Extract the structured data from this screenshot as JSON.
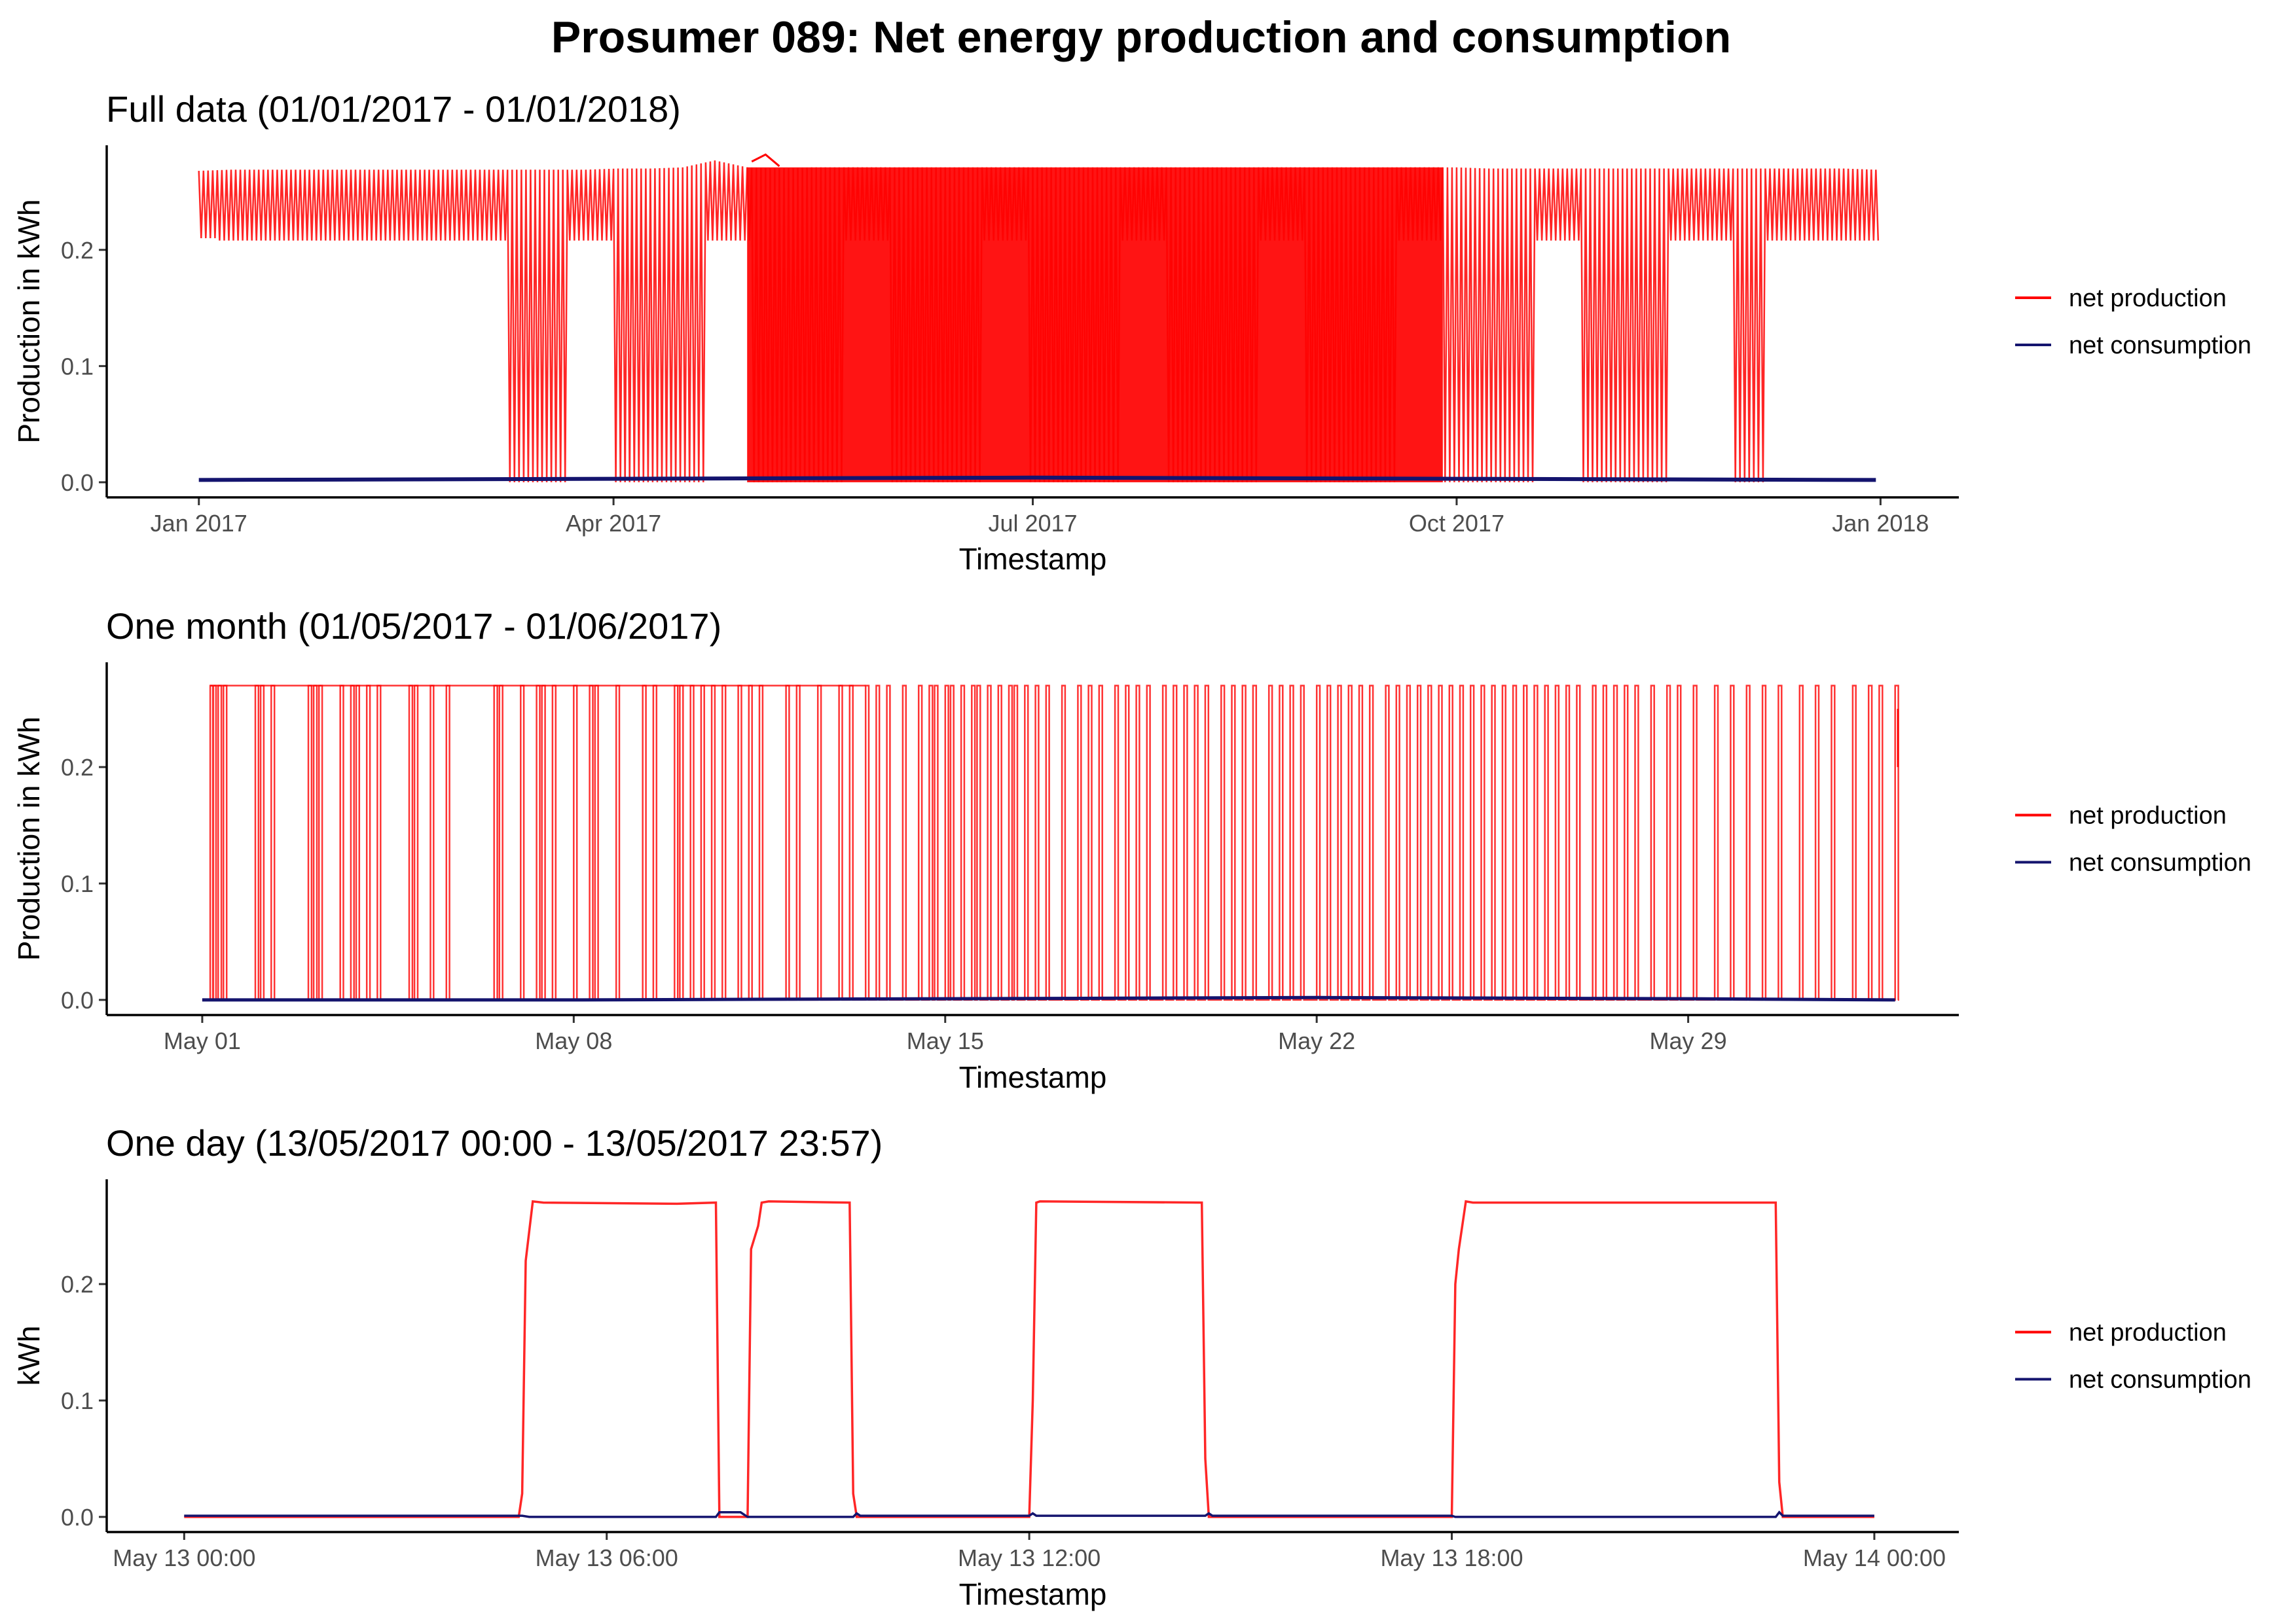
{
  "title": "Prosumer 089: Net energy production and consumption",
  "colors": {
    "production": "#ff0000",
    "consumption": "#14146e"
  },
  "chart_data": [
    {
      "type": "line",
      "title": "Full data (01/01/2017 - 01/01/2018)",
      "xlabel": "Timestamp",
      "ylabel": "Production in kWh",
      "ylim": [
        -0.013,
        0.29
      ],
      "yticks": [
        0.0,
        0.1,
        0.2
      ],
      "ytick_labels": [
        "0.0",
        "0.1",
        "0.2"
      ],
      "xlim": [
        "2016-12-12",
        "2018-01-18"
      ],
      "xticks": [
        "2017-01-01",
        "2017-04-01",
        "2017-07-01",
        "2017-10-01",
        "2018-01-01"
      ],
      "xtick_labels": [
        "Jan 2017",
        "Apr 2017",
        "Jul 2017",
        "Oct 2017",
        "Jan 2018"
      ],
      "legend": {
        "position": "right",
        "entries": [
          "net production",
          "net consumption"
        ]
      },
      "series": [
        {
          "name": "net production",
          "color": "#ff0000",
          "x": [
            "2017-01-01",
            "2017-01-08",
            "2017-01-15",
            "2017-01-22",
            "2017-01-29",
            "2017-02-05",
            "2017-02-12",
            "2017-02-19",
            "2017-02-26",
            "2017-03-05",
            "2017-03-12",
            "2017-03-19",
            "2017-03-26",
            "2017-04-02",
            "2017-04-09",
            "2017-04-16",
            "2017-04-23",
            "2017-04-30",
            "2017-05-07",
            "2017-05-14",
            "2017-05-21",
            "2017-05-28",
            "2017-06-04",
            "2017-06-11",
            "2017-06-18",
            "2017-06-25",
            "2017-07-02",
            "2017-07-09",
            "2017-07-16",
            "2017-07-23",
            "2017-07-30",
            "2017-08-06",
            "2017-08-13",
            "2017-08-20",
            "2017-08-27",
            "2017-09-03",
            "2017-09-10",
            "2017-09-17",
            "2017-09-24",
            "2017-10-01",
            "2017-10-08",
            "2017-10-15",
            "2017-10-22",
            "2017-10-29",
            "2017-11-05",
            "2017-11-12",
            "2017-11-19",
            "2017-11-26",
            "2017-12-03",
            "2017-12-10",
            "2017-12-17",
            "2017-12-24",
            "2017-12-31"
          ],
          "y_max": [
            0.268,
            0.269,
            0.269,
            0.269,
            0.269,
            0.269,
            0.269,
            0.269,
            0.269,
            0.269,
            0.269,
            0.269,
            0.269,
            0.27,
            0.27,
            0.271,
            0.277,
            0.271,
            0.27,
            0.271,
            0.271,
            0.271,
            0.271,
            0.271,
            0.271,
            0.271,
            0.271,
            0.271,
            0.271,
            0.271,
            0.271,
            0.271,
            0.271,
            0.271,
            0.271,
            0.271,
            0.271,
            0.271,
            0.271,
            0.271,
            0.27,
            0.27,
            0.27,
            0.27,
            0.27,
            0.27,
            0.27,
            0.27,
            0.27,
            0.27,
            0.27,
            0.27,
            0.269
          ],
          "y_min": [
            0.21,
            0.208,
            0.208,
            0.208,
            0.208,
            0.208,
            0.208,
            0.208,
            0.208,
            0.208,
            0.0,
            0.0,
            0.0,
            0.0,
            0.0,
            0.0,
            0.0,
            0.0,
            0.0,
            0.0,
            0.0,
            0.0,
            0.0,
            0.0,
            0.0,
            0.0,
            0.0,
            0.0,
            0.0,
            0.0,
            0.0,
            0.0,
            0.0,
            0.0,
            0.0,
            0.0,
            0.0,
            0.0,
            0.0,
            0.0,
            0.0,
            0.0,
            0.0,
            0.0,
            0.0,
            0.0,
            0.208,
            0.208,
            0.0,
            0.208,
            0.208,
            0.208,
            0.208
          ]
        },
        {
          "name": "net consumption",
          "color": "#14146e",
          "x": [
            "2017-01-01",
            "2017-04-01",
            "2017-07-01",
            "2017-10-01",
            "2017-12-31"
          ],
          "y": [
            0.002,
            0.003,
            0.004,
            0.003,
            0.002
          ]
        }
      ]
    },
    {
      "type": "line",
      "title": "One month (01/05/2017 - 01/06/2017)",
      "xlabel": "Timestamp",
      "ylabel": "Production in kWh",
      "ylim": [
        -0.013,
        0.29
      ],
      "yticks": [
        0.0,
        0.1,
        0.2
      ],
      "ytick_labels": [
        "0.0",
        "0.1",
        "0.2"
      ],
      "xlim": [
        -1.8,
        33.1
      ],
      "xticks": [
        0,
        7,
        14,
        21,
        28
      ],
      "xtick_labels": [
        "May 01",
        "May 08",
        "May 15",
        "May 22",
        "May 29"
      ],
      "legend": {
        "position": "right",
        "entries": [
          "net production",
          "net consumption"
        ]
      },
      "series": [
        {
          "name": "net production",
          "color": "#ff0000",
          "x": [
            0.15,
            0.2,
            0.3,
            0.4,
            1.0,
            1.1,
            1.3,
            2.0,
            2.1,
            2.2,
            2.6,
            2.8,
            2.9,
            3.1,
            3.3,
            3.9,
            4.0,
            4.3,
            4.6,
            5.5,
            5.6,
            6.0,
            6.3,
            6.4,
            6.6,
            7.0,
            7.3,
            7.4,
            7.8,
            8.3,
            8.5,
            8.9,
            9.0,
            9.2,
            9.4,
            9.6,
            9.8,
            10.1,
            10.3,
            10.5,
            11.0,
            11.2,
            11.6,
            12.0,
            12.2,
            12.5,
            12.7,
            12.9,
            13.2,
            13.5,
            13.7,
            13.8,
            14.0,
            14.1,
            14.3,
            14.5,
            14.6,
            14.8,
            15.0,
            15.2,
            15.3,
            15.5,
            15.7,
            15.9,
            16.2,
            16.5,
            16.7,
            16.9,
            17.2,
            17.4,
            17.6,
            17.8,
            18.1,
            18.3,
            18.5,
            18.7,
            18.9,
            19.2,
            19.4,
            19.6,
            19.8,
            20.1,
            20.3,
            20.5,
            20.7,
            21.0,
            21.2,
            21.4,
            21.6,
            21.8,
            22.0,
            22.3,
            22.5,
            22.7,
            22.9,
            23.1,
            23.3,
            23.5,
            23.7,
            23.9,
            24.1,
            24.3,
            24.5,
            24.7,
            24.9,
            25.1,
            25.3,
            25.5,
            25.7,
            25.9,
            26.2,
            26.4,
            26.6,
            26.8,
            27.0,
            27.3,
            27.6,
            27.8,
            28.1,
            28.5,
            28.8,
            29.1,
            29.4,
            29.7,
            30.1,
            30.4,
            30.7,
            31.1,
            31.4,
            31.6,
            31.9
          ],
          "y_max": 0.27,
          "y_min": 0.0
        },
        {
          "name": "net consumption",
          "color": "#14146e",
          "x": [
            0,
            7,
            14,
            21,
            28,
            31.9
          ],
          "y": [
            0.0,
            0.0,
            0.001,
            0.002,
            0.001,
            0.0
          ]
        }
      ]
    },
    {
      "type": "line",
      "title": "One day (13/05/2017 00:00 - 13/05/2017 23:57)",
      "xlabel": "Timestamp",
      "ylabel": "kWh",
      "ylim": [
        -0.013,
        0.29
      ],
      "yticks": [
        0.0,
        0.1,
        0.2
      ],
      "ytick_labels": [
        "0.0",
        "0.1",
        "0.2"
      ],
      "xlim": [
        -1.1,
        25.2
      ],
      "xticks": [
        0,
        6,
        12,
        18,
        24
      ],
      "xtick_labels": [
        "May 13 00:00",
        "May 13 06:00",
        "May 13 12:00",
        "May 13 18:00",
        "May 14 00:00"
      ],
      "legend": {
        "position": "right",
        "entries": [
          "net production",
          "net consumption"
        ]
      },
      "series": [
        {
          "name": "net production",
          "color": "#ff0000",
          "x": [
            0,
            4.75,
            4.8,
            4.85,
            4.95,
            5.1,
            7.0,
            7.55,
            7.6,
            7.9,
            8.0,
            8.05,
            8.15,
            8.2,
            8.3,
            9.45,
            9.5,
            9.55,
            12.0,
            12.05,
            12.1,
            12.15,
            14.45,
            14.5,
            14.55,
            18.0,
            18.05,
            18.1,
            18.2,
            18.3,
            22.6,
            22.65,
            22.7,
            24.0
          ],
          "y": [
            0,
            0,
            0.02,
            0.22,
            0.271,
            0.27,
            0.269,
            0.27,
            0,
            0,
            0,
            0.23,
            0.25,
            0.27,
            0.271,
            0.27,
            0.02,
            0,
            0,
            0.1,
            0.27,
            0.271,
            0.27,
            0.05,
            0,
            0,
            0.2,
            0.23,
            0.271,
            0.27,
            0.27,
            0.03,
            0,
            0
          ]
        },
        {
          "name": "net consumption",
          "color": "#14146e",
          "x": [
            0,
            4.8,
            4.9,
            5.0,
            7.55,
            7.6,
            7.9,
            8.0,
            9.5,
            9.55,
            9.6,
            12.0,
            12.05,
            12.1,
            14.5,
            14.55,
            14.6,
            18.0,
            18.05,
            22.6,
            22.65,
            22.7,
            24.0
          ],
          "y": [
            0.001,
            0.001,
            0.0,
            0.0,
            0.0,
            0.004,
            0.004,
            0.0,
            0.0,
            0.003,
            0.001,
            0.001,
            0.003,
            0.001,
            0.001,
            0.003,
            0.001,
            0.001,
            0.0,
            0.0,
            0.004,
            0.001,
            0.001
          ]
        }
      ]
    }
  ]
}
